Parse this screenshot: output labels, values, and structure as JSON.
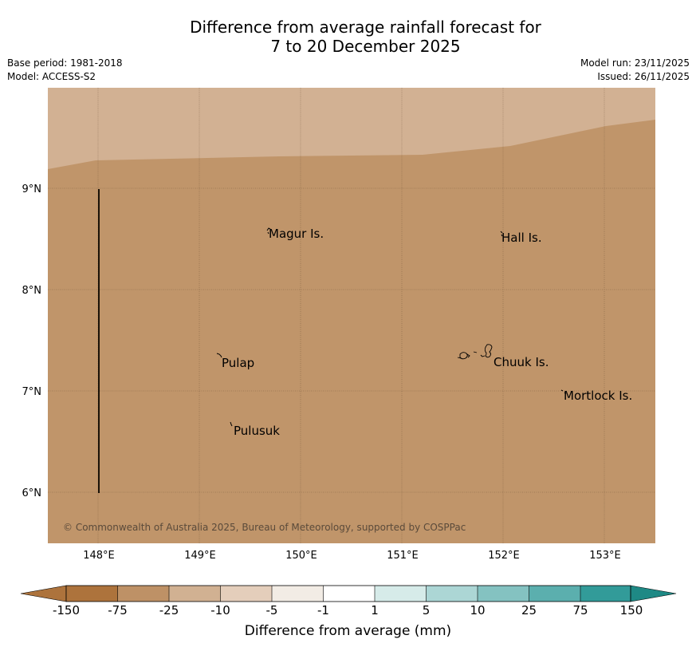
{
  "header": {
    "title_line1": "Difference from average rainfall forecast for",
    "title_line2": "7 to 20 December 2025",
    "base_period": "Base period: 1981-2018",
    "model": "Model: ACCESS-S2",
    "model_run": "Model run: 23/11/2025",
    "issued": "Issued: 26/11/2025"
  },
  "map": {
    "lat_labels": [
      "9°N",
      "8°N",
      "7°N",
      "6°N"
    ],
    "lon_labels": [
      "148°E",
      "149°E",
      "150°E",
      "151°E",
      "152°E",
      "153°E"
    ],
    "places": [
      "Magur Is.",
      "Hall Is.",
      "Pulap",
      "Chuuk Is.",
      "Mortlock Is.",
      "Pulusuk"
    ],
    "copyright": "© Commonwealth of Australia 2025, Bureau of Meteorology, supported by COSPPac",
    "colors": {
      "main_fill": "#c0956a",
      "upper_fill": "#d2b193",
      "gridline": "#6b5038"
    }
  },
  "colorbar": {
    "labels": [
      "-150",
      "-75",
      "-25",
      "-10",
      "-5",
      "-1",
      "1",
      "5",
      "10",
      "25",
      "75",
      "150"
    ],
    "colors": [
      "#ad733c",
      "#be9166",
      "#d1b192",
      "#e4cebb",
      "#f2ece5",
      "#ffffff",
      "#d6ebe9",
      "#acd6d5",
      "#84c2c1",
      "#5bafae",
      "#329b99",
      "#1e8985"
    ],
    "title": "Difference from average (mm)"
  }
}
